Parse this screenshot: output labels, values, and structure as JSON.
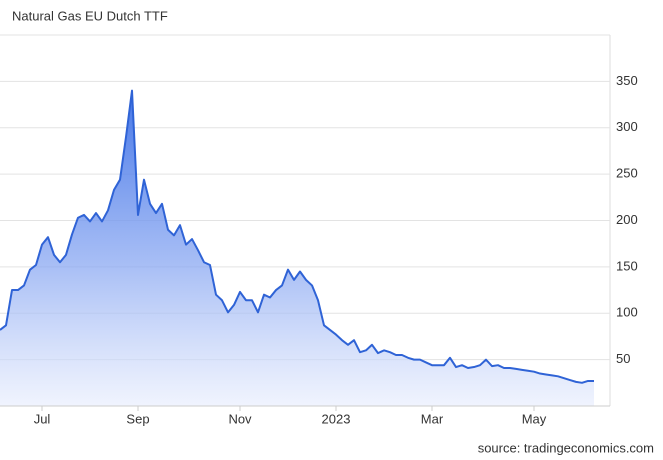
{
  "chart_data": {
    "type": "area",
    "title": "Natural Gas EU Dutch TTF",
    "source": "source: tradingeconomics.com",
    "categories": [
      null,
      null,
      null,
      null,
      null,
      null,
      null,
      "Jul",
      null,
      null,
      null,
      null,
      null,
      null,
      null,
      null,
      null,
      null,
      null,
      null,
      null,
      null,
      null,
      "Sep",
      null,
      null,
      null,
      null,
      null,
      null,
      null,
      null,
      null,
      null,
      null,
      null,
      null,
      null,
      null,
      null,
      "Nov",
      null,
      null,
      null,
      null,
      null,
      null,
      null,
      null,
      null,
      null,
      null,
      null,
      null,
      null,
      null,
      "2023",
      null,
      null,
      null,
      null,
      null,
      null,
      null,
      null,
      null,
      null,
      null,
      null,
      null,
      null,
      null,
      "Mar",
      null,
      null,
      null,
      null,
      null,
      null,
      null,
      null,
      null,
      null,
      null,
      null,
      null,
      null,
      null,
      null,
      "May",
      null,
      null,
      null,
      null,
      null,
      null,
      null,
      null,
      null,
      null
    ],
    "values": [
      82,
      87,
      125,
      125,
      130,
      147,
      152,
      174,
      182,
      163,
      155,
      163,
      185,
      203,
      206,
      199,
      208,
      199,
      211,
      233,
      244,
      290,
      340,
      206,
      244,
      218,
      208,
      218,
      190,
      184,
      195,
      174,
      180,
      168,
      155,
      152,
      120,
      114,
      101,
      109,
      123,
      114,
      114,
      101,
      120,
      117,
      125,
      130,
      147,
      136,
      145,
      136,
      130,
      114,
      87,
      82,
      77,
      71,
      66,
      71,
      58,
      60,
      66,
      57,
      60,
      58,
      55,
      55,
      52,
      50,
      50,
      47,
      44,
      44,
      44,
      52,
      42,
      44,
      41,
      42,
      44,
      50,
      43,
      44,
      41,
      41,
      40,
      39,
      38,
      37,
      35,
      34,
      33,
      32,
      30,
      28,
      26,
      25,
      27,
      27
    ],
    "color": "#2f63d6",
    "ylim": [
      0,
      400
    ],
    "yticks": [
      50,
      100,
      150,
      200,
      250,
      300,
      350
    ],
    "grid": true
  }
}
